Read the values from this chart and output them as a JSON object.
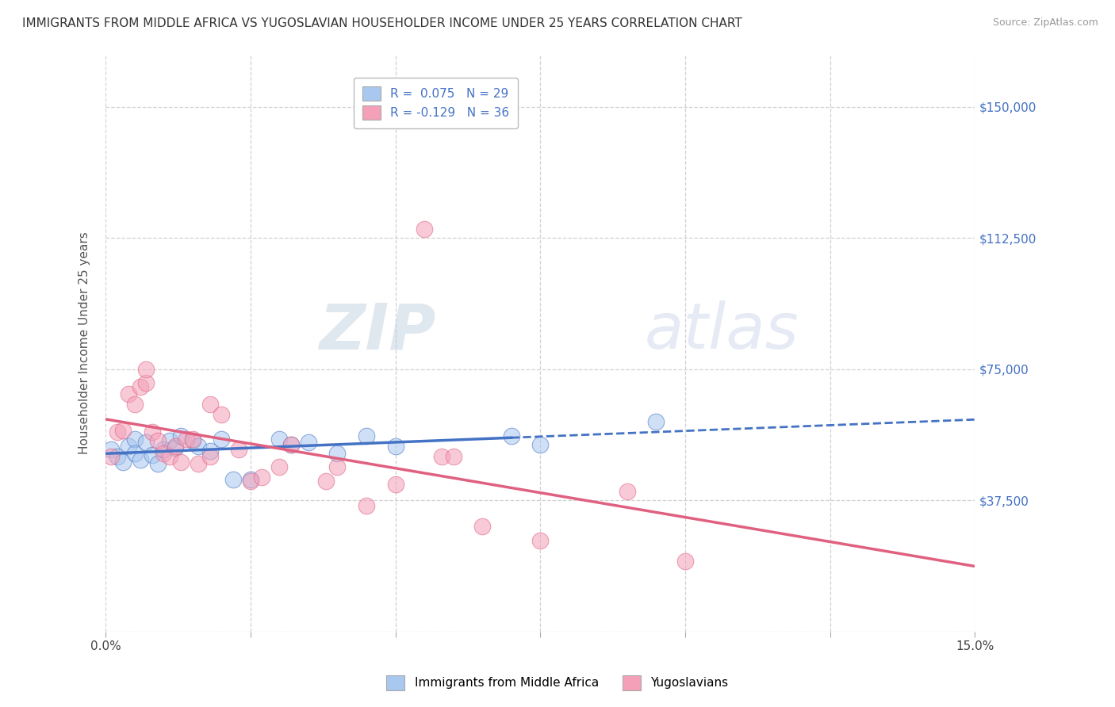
{
  "title": "IMMIGRANTS FROM MIDDLE AFRICA VS YUGOSLAVIAN HOUSEHOLDER INCOME UNDER 25 YEARS CORRELATION CHART",
  "source": "Source: ZipAtlas.com",
  "ylabel": "Householder Income Under 25 years",
  "xlim": [
    0.0,
    0.15
  ],
  "ylim": [
    0,
    165000
  ],
  "yticks": [
    0,
    37500,
    75000,
    112500,
    150000
  ],
  "ytick_labels": [
    "",
    "$37,500",
    "$75,000",
    "$112,500",
    "$150,000"
  ],
  "xticks": [
    0.0,
    0.025,
    0.05,
    0.075,
    0.1,
    0.125,
    0.15
  ],
  "xtick_labels": [
    "0.0%",
    "",
    "",
    "",
    "",
    "",
    "15.0%"
  ],
  "legend_R1": "R =  0.075   N = 29",
  "legend_R2": "R = -0.129   N = 36",
  "color_blue": "#A8C8F0",
  "color_pink": "#F4A0B8",
  "trendline_blue": "#4472C4",
  "trendline_pink": "#E06080",
  "background_color": "#FFFFFF",
  "grid_color": "#CCCCCC",
  "watermark_zip": "ZIP",
  "watermark_atlas": "atlas",
  "scatter_blue": [
    [
      0.001,
      52000
    ],
    [
      0.002,
      50000
    ],
    [
      0.003,
      48500
    ],
    [
      0.004,
      53000
    ],
    [
      0.005,
      55000
    ],
    [
      0.005,
      51000
    ],
    [
      0.006,
      49000
    ],
    [
      0.007,
      54000
    ],
    [
      0.008,
      50500
    ],
    [
      0.009,
      48000
    ],
    [
      0.01,
      52000
    ],
    [
      0.011,
      54500
    ],
    [
      0.012,
      52500
    ],
    [
      0.013,
      56000
    ],
    [
      0.015,
      54500
    ],
    [
      0.016,
      53000
    ],
    [
      0.018,
      51500
    ],
    [
      0.02,
      55000
    ],
    [
      0.022,
      43500
    ],
    [
      0.025,
      43500
    ],
    [
      0.03,
      55000
    ],
    [
      0.032,
      53500
    ],
    [
      0.035,
      54000
    ],
    [
      0.04,
      51000
    ],
    [
      0.045,
      56000
    ],
    [
      0.05,
      53000
    ],
    [
      0.07,
      56000
    ],
    [
      0.075,
      53500
    ],
    [
      0.095,
      60000
    ]
  ],
  "scatter_pink": [
    [
      0.001,
      50000
    ],
    [
      0.002,
      57000
    ],
    [
      0.003,
      57500
    ],
    [
      0.004,
      68000
    ],
    [
      0.005,
      65000
    ],
    [
      0.006,
      70000
    ],
    [
      0.007,
      71000
    ],
    [
      0.007,
      75000
    ],
    [
      0.008,
      57000
    ],
    [
      0.009,
      54500
    ],
    [
      0.01,
      51000
    ],
    [
      0.011,
      50000
    ],
    [
      0.012,
      53000
    ],
    [
      0.013,
      48500
    ],
    [
      0.014,
      55000
    ],
    [
      0.015,
      55000
    ],
    [
      0.016,
      48000
    ],
    [
      0.018,
      50000
    ],
    [
      0.018,
      65000
    ],
    [
      0.02,
      62000
    ],
    [
      0.023,
      52000
    ],
    [
      0.025,
      43000
    ],
    [
      0.027,
      44000
    ],
    [
      0.03,
      47000
    ],
    [
      0.032,
      53500
    ],
    [
      0.038,
      43000
    ],
    [
      0.04,
      47000
    ],
    [
      0.045,
      36000
    ],
    [
      0.05,
      42000
    ],
    [
      0.055,
      115000
    ],
    [
      0.058,
      50000
    ],
    [
      0.06,
      50000
    ],
    [
      0.065,
      30000
    ],
    [
      0.075,
      26000
    ],
    [
      0.09,
      40000
    ],
    [
      0.1,
      20000
    ]
  ]
}
